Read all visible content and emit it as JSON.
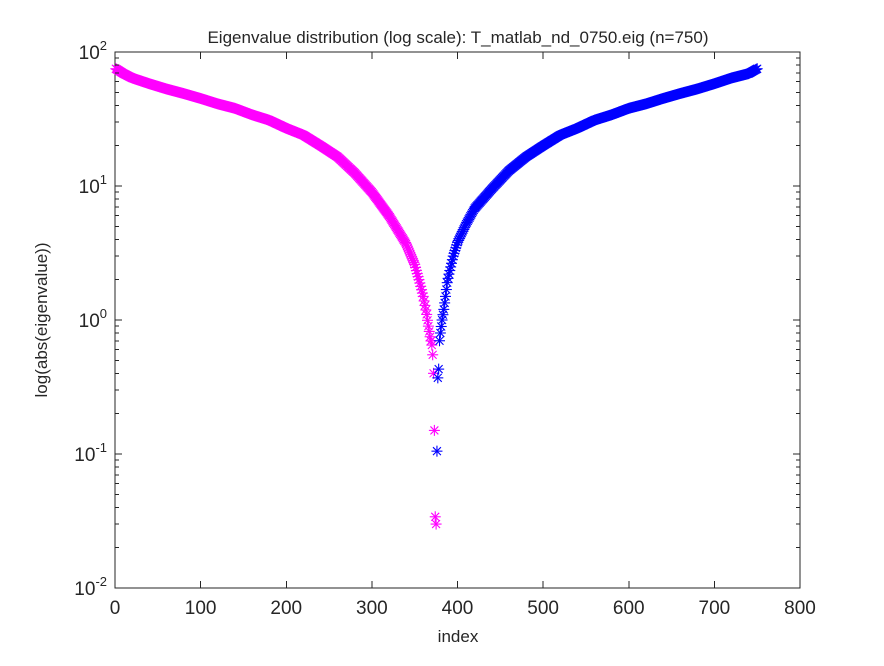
{
  "chart_data": {
    "type": "scatter",
    "title": "Eigenvalue distribution (log scale): T_matlab_nd_0750.eig (n=750)",
    "xlabel": "index",
    "ylabel": "log(abs(eigenvalue))",
    "xlim": [
      0,
      800
    ],
    "ylim": [
      0.01,
      100
    ],
    "yscale": "log",
    "grid": false,
    "legend": "none",
    "xticks": [
      "0",
      "100",
      "200",
      "300",
      "400",
      "500",
      "600",
      "700",
      "800"
    ],
    "yticks": [
      {
        "value": 0.01,
        "base": "10",
        "exp": "-2"
      },
      {
        "value": 0.1,
        "base": "10",
        "exp": "-1"
      },
      {
        "value": 1,
        "base": "10",
        "exp": "0"
      },
      {
        "value": 10,
        "base": "10",
        "exp": "1"
      },
      {
        "value": 100,
        "base": "10",
        "exp": "2"
      }
    ],
    "marker": "asterisk",
    "series": [
      {
        "color": "#ff00ff",
        "x": [
          1,
          10,
          20,
          40,
          60,
          80,
          100,
          120,
          140,
          160,
          180,
          200,
          220,
          240,
          260,
          280,
          300,
          320,
          340,
          350,
          355,
          360,
          364,
          366,
          368,
          370,
          371,
          372,
          373,
          374,
          375
        ],
        "y": [
          75,
          69,
          64,
          58,
          53,
          49,
          45,
          41,
          38,
          34,
          31,
          27,
          24,
          20,
          16.5,
          12.5,
          9,
          6,
          3.7,
          2.6,
          2.0,
          1.5,
          1.1,
          0.9,
          0.75,
          0.65,
          0.55,
          0.4,
          0.15,
          0.034,
          0.03
        ]
      },
      {
        "color": "#0000ff",
        "x": [
          376,
          377,
          378,
          379,
          380,
          382,
          384,
          386,
          388,
          390,
          395,
          400,
          410,
          420,
          440,
          460,
          480,
          500,
          520,
          540,
          560,
          580,
          600,
          620,
          640,
          660,
          680,
          700,
          720,
          740,
          750
        ],
        "y": [
          0.105,
          0.37,
          0.43,
          0.7,
          0.8,
          1.0,
          1.2,
          1.5,
          1.9,
          2.2,
          3.0,
          3.8,
          5.2,
          6.8,
          9.5,
          13,
          16.5,
          20,
          24,
          27,
          31,
          34,
          38,
          41,
          45,
          49,
          53,
          58,
          64,
          69,
          75
        ]
      }
    ]
  }
}
